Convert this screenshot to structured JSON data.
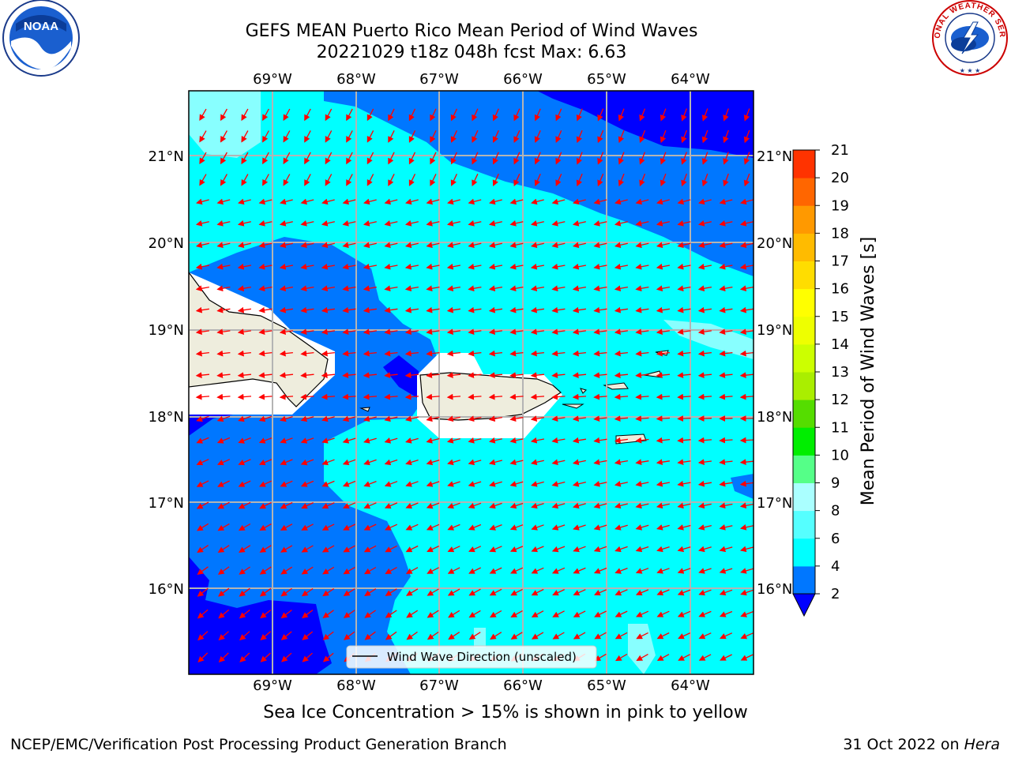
{
  "title": {
    "line1": "GEFS MEAN Puerto Rico Mean Period of Wind Waves",
    "line2": "20221029 t18z 048h fcst   Max: 6.63"
  },
  "map": {
    "lon_labels": [
      "69°W",
      "68°W",
      "67°W",
      "66°W",
      "65°W",
      "64°W"
    ],
    "lat_labels": [
      "21°N",
      "20°N",
      "19°N",
      "18°N",
      "17°N",
      "16°N"
    ],
    "lon_range": [
      -70.0,
      -63.25
    ],
    "lat_range": [
      15.0,
      21.75
    ],
    "grid": true
  },
  "legend": {
    "label": "Wind Wave Direction (unscaled)"
  },
  "colorbar": {
    "label": "Mean Period of Wind Waves [s]",
    "ticks": [
      "2",
      "4",
      "6",
      "8",
      "9",
      "10",
      "11",
      "12",
      "13",
      "14",
      "15",
      "16",
      "17",
      "18",
      "19",
      "20",
      "21"
    ],
    "colors": [
      "#0077ff",
      "#00ffff",
      "#55ffff",
      "#aaffff",
      "#55ff88",
      "#00ee00",
      "#55dd00",
      "#aaee00",
      "#ccff00",
      "#eeff00",
      "#ffff00",
      "#ffdd00",
      "#ffbb00",
      "#ff9900",
      "#ff6600",
      "#ff3300",
      "#ff0000"
    ],
    "under_color": "#0000ff"
  },
  "logos": {
    "noaa_text": "NOAA",
    "nws_text": "NATIONAL WEATHER SERVICE"
  },
  "colors": {
    "land": "#eeeddd",
    "arrows": "#ff0000",
    "deep_blue": "#0000ff",
    "mid_blue": "#0077ff",
    "cyan": "#00ffff",
    "light_cyan": "#88ffff"
  },
  "footer": {
    "subtitle": "Sea Ice Concentration > 15% is shown in pink to yellow",
    "left": "NCEP/EMC/Verification Post Processing Product Generation Branch",
    "right_date": "31 Oct 2022 on ",
    "right_machine": "Hera"
  }
}
